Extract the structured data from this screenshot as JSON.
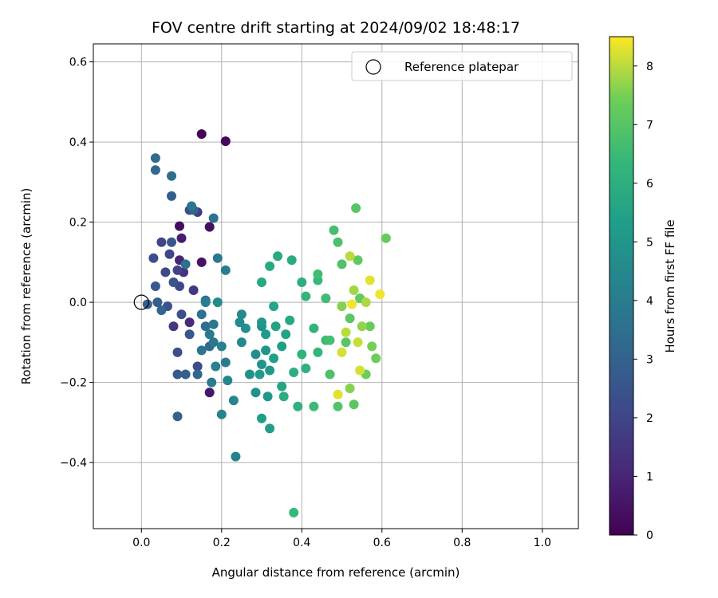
{
  "chart_data": {
    "type": "scatter",
    "title": "FOV centre drift starting at 2024/09/02 18:48:17",
    "xlabel": "Angular distance from reference (arcmin)",
    "ylabel": "Rotation from reference (arcmin)",
    "xlim": [
      -0.12,
      1.09
    ],
    "ylim": [
      -0.565,
      0.645
    ],
    "xticks": [
      0.0,
      0.2,
      0.4,
      0.6,
      0.8,
      1.0
    ],
    "xtick_labels": [
      "0.0",
      "0.2",
      "0.4",
      "0.6",
      "0.8",
      "1.0"
    ],
    "yticks": [
      -0.4,
      -0.2,
      0.0,
      0.2,
      0.4,
      0.6
    ],
    "ytick_labels": [
      "−0.4",
      "−0.2",
      "0.0",
      "0.2",
      "0.4",
      "0.6"
    ],
    "grid": true,
    "legend": {
      "label": "Reference platepar",
      "placement": "upper-right",
      "marker": "hollow-circle"
    },
    "reference_point": {
      "x": 0.0,
      "y": 0.0
    },
    "colorbar": {
      "label": "Hours from first FF file",
      "min": 0,
      "max": 8.5,
      "ticks": [
        0,
        1,
        2,
        3,
        4,
        5,
        6,
        7,
        8
      ],
      "tick_labels": [
        "0",
        "1",
        "2",
        "3",
        "4",
        "5",
        "6",
        "7",
        "8"
      ],
      "colormap": "viridis"
    },
    "points": [
      [
        0.15,
        0.42,
        0.1
      ],
      [
        0.21,
        0.402,
        0.2
      ],
      [
        0.095,
        0.19,
        0.3
      ],
      [
        0.17,
        0.188,
        0.4
      ],
      [
        0.15,
        0.1,
        0.5
      ],
      [
        0.17,
        -0.225,
        0.6
      ],
      [
        0.1,
        0.16,
        0.8
      ],
      [
        0.095,
        0.105,
        1.0
      ],
      [
        0.12,
        -0.05,
        1.2
      ],
      [
        0.105,
        0.075,
        1.4
      ],
      [
        0.08,
        -0.06,
        1.5
      ],
      [
        0.13,
        0.03,
        1.6
      ],
      [
        0.14,
        0.225,
        1.8
      ],
      [
        0.09,
        0.08,
        1.9
      ],
      [
        0.07,
        0.12,
        2.0
      ],
      [
        0.05,
        0.15,
        2.0
      ],
      [
        0.095,
        0.04,
        2.1
      ],
      [
        0.06,
        0.075,
        2.1
      ],
      [
        0.12,
        0.23,
        2.2
      ],
      [
        0.14,
        -0.16,
        2.2
      ],
      [
        0.09,
        -0.125,
        2.3
      ],
      [
        0.03,
        0.11,
        2.3
      ],
      [
        0.1,
        -0.03,
        2.4
      ],
      [
        0.065,
        -0.01,
        2.4
      ],
      [
        0.08,
        0.05,
        2.5
      ],
      [
        0.075,
        0.15,
        2.6
      ],
      [
        0.12,
        -0.08,
        2.6
      ],
      [
        0.035,
        0.04,
        2.7
      ],
      [
        0.09,
        -0.18,
        2.7
      ],
      [
        0.04,
        0.0,
        2.8
      ],
      [
        0.075,
        0.265,
        2.8
      ],
      [
        0.11,
        -0.18,
        2.9
      ],
      [
        0.015,
        -0.005,
        2.9
      ],
      [
        0.09,
        -0.285,
        3.0
      ],
      [
        0.13,
        0.23,
        3.0
      ],
      [
        0.05,
        -0.02,
        3.1
      ],
      [
        0.035,
        0.33,
        3.2
      ],
      [
        0.14,
        -0.18,
        3.2
      ],
      [
        0.035,
        0.36,
        3.3
      ],
      [
        0.17,
        -0.11,
        3.3
      ],
      [
        0.075,
        0.315,
        3.4
      ],
      [
        0.16,
        -0.06,
        3.4
      ],
      [
        0.11,
        0.095,
        3.5
      ],
      [
        0.16,
        0.005,
        3.5
      ],
      [
        0.15,
        -0.03,
        3.6
      ],
      [
        0.18,
        0.21,
        3.6
      ],
      [
        0.125,
        0.24,
        3.7
      ],
      [
        0.15,
        -0.12,
        3.7
      ],
      [
        0.19,
        0.11,
        3.8
      ],
      [
        0.18,
        -0.1,
        3.8
      ],
      [
        0.18,
        -0.055,
        3.9
      ],
      [
        0.17,
        -0.08,
        3.9
      ],
      [
        0.21,
        -0.15,
        4.0
      ],
      [
        0.175,
        -0.2,
        4.0
      ],
      [
        0.21,
        0.08,
        4.1
      ],
      [
        0.16,
        0.0,
        4.1
      ],
      [
        0.185,
        -0.16,
        4.2
      ],
      [
        0.2,
        -0.11,
        4.2
      ],
      [
        0.2,
        -0.28,
        4.3
      ],
      [
        0.235,
        -0.385,
        4.3
      ],
      [
        0.23,
        -0.245,
        4.4
      ],
      [
        0.215,
        -0.195,
        4.4
      ],
      [
        0.245,
        -0.05,
        4.5
      ],
      [
        0.25,
        -0.03,
        4.5
      ],
      [
        0.19,
        0.0,
        4.6
      ],
      [
        0.25,
        -0.1,
        4.6
      ],
      [
        0.26,
        -0.065,
        4.7
      ],
      [
        0.285,
        -0.13,
        4.7
      ],
      [
        0.3,
        -0.06,
        4.8
      ],
      [
        0.27,
        -0.18,
        4.8
      ],
      [
        0.285,
        -0.225,
        4.9
      ],
      [
        0.3,
        -0.155,
        4.9
      ],
      [
        0.31,
        -0.12,
        5.0
      ],
      [
        0.315,
        -0.235,
        5.0
      ],
      [
        0.3,
        -0.05,
        5.1
      ],
      [
        0.32,
        -0.17,
        5.1
      ],
      [
        0.31,
        -0.08,
        5.2
      ],
      [
        0.295,
        -0.18,
        5.2
      ],
      [
        0.3,
        -0.29,
        5.3
      ],
      [
        0.32,
        -0.315,
        5.3
      ],
      [
        0.33,
        -0.14,
        5.4
      ],
      [
        0.35,
        -0.11,
        5.4
      ],
      [
        0.335,
        -0.06,
        5.5
      ],
      [
        0.36,
        -0.08,
        5.5
      ],
      [
        0.33,
        -0.01,
        5.6
      ],
      [
        0.35,
        -0.21,
        5.6
      ],
      [
        0.37,
        -0.045,
        5.7
      ],
      [
        0.3,
        0.05,
        5.7
      ],
      [
        0.32,
        0.09,
        5.8
      ],
      [
        0.34,
        0.115,
        5.8
      ],
      [
        0.375,
        0.105,
        5.9
      ],
      [
        0.355,
        -0.235,
        5.9
      ],
      [
        0.38,
        -0.175,
        6.0
      ],
      [
        0.4,
        0.05,
        6.0
      ],
      [
        0.39,
        -0.26,
        6.1
      ],
      [
        0.41,
        -0.165,
        6.1
      ],
      [
        0.4,
        -0.13,
        6.2
      ],
      [
        0.43,
        -0.065,
        6.2
      ],
      [
        0.41,
        0.015,
        6.3
      ],
      [
        0.44,
        -0.125,
        6.3
      ],
      [
        0.38,
        -0.525,
        6.4
      ],
      [
        0.44,
        0.055,
        6.4
      ],
      [
        0.43,
        -0.26,
        6.5
      ],
      [
        0.46,
        -0.095,
        6.5
      ],
      [
        0.46,
        0.01,
        6.6
      ],
      [
        0.44,
        0.07,
        6.6
      ],
      [
        0.47,
        -0.095,
        6.7
      ],
      [
        0.48,
        0.18,
        6.7
      ],
      [
        0.49,
        0.15,
        6.8
      ],
      [
        0.47,
        -0.18,
        6.8
      ],
      [
        0.49,
        -0.26,
        6.9
      ],
      [
        0.5,
        0.095,
        6.9
      ],
      [
        0.51,
        -0.1,
        7.0
      ],
      [
        0.535,
        0.235,
        7.0
      ],
      [
        0.52,
        -0.04,
        7.1
      ],
      [
        0.53,
        -0.255,
        7.1
      ],
      [
        0.545,
        0.01,
        7.2
      ],
      [
        0.54,
        0.105,
        7.2
      ],
      [
        0.57,
        -0.06,
        7.3
      ],
      [
        0.61,
        0.16,
        7.3
      ],
      [
        0.56,
        -0.18,
        7.4
      ],
      [
        0.585,
        -0.14,
        7.4
      ],
      [
        0.575,
        -0.11,
        7.5
      ],
      [
        0.5,
        -0.01,
        7.6
      ],
      [
        0.52,
        -0.215,
        7.6
      ],
      [
        0.55,
        -0.06,
        7.7
      ],
      [
        0.53,
        0.03,
        7.8
      ],
      [
        0.56,
        0.0,
        7.9
      ],
      [
        0.52,
        0.115,
        8.0
      ],
      [
        0.51,
        -0.075,
        8.0
      ],
      [
        0.54,
        -0.1,
        8.1
      ],
      [
        0.5,
        -0.125,
        8.2
      ],
      [
        0.545,
        -0.17,
        8.2
      ],
      [
        0.57,
        0.055,
        8.3
      ],
      [
        0.49,
        -0.23,
        8.3
      ],
      [
        0.595,
        0.02,
        8.4
      ],
      [
        0.525,
        -0.005,
        8.4
      ]
    ]
  }
}
